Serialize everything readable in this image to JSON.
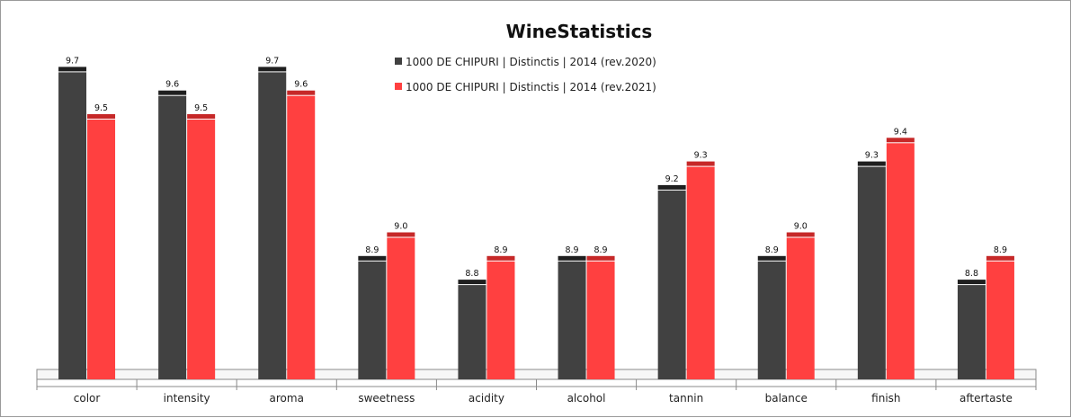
{
  "chart_data": {
    "type": "bar",
    "title": "WineStatistics",
    "xlabel": "",
    "ylabel": "",
    "ylim": [
      7.6,
      9.7
    ],
    "grid": false,
    "legend_position": "top-center",
    "categories": [
      "color",
      "intensity",
      "aroma",
      "sweetness",
      "acidity",
      "alcohol",
      "tannin",
      "balance",
      "finish",
      "aftertaste"
    ],
    "series": [
      {
        "name": "1000 DE CHIPURI | Distinctis | 2014 (rev.2020)",
        "color": "#414141",
        "cap_color": "#1f1f1f",
        "values": [
          9.7,
          9.6,
          9.7,
          8.9,
          8.8,
          8.9,
          9.2,
          8.9,
          9.3,
          8.8
        ],
        "labels": [
          "9.7",
          "9.6",
          "9.7",
          "8.9",
          "8.8",
          "8.9",
          "9.2",
          "8.9",
          "9.3",
          "8.8"
        ]
      },
      {
        "name": "1000 DE CHIPURI | Distinctis | 2014 (rev.2021)",
        "color": "#ff4040",
        "cap_color": "#c62828",
        "values": [
          9.5,
          9.5,
          9.6,
          9.0,
          8.9,
          8.9,
          9.3,
          9.0,
          9.4,
          8.9
        ],
        "labels": [
          "9.5",
          "9.5",
          "9.6",
          "9.0",
          "8.9",
          "8.9",
          "9.3",
          "9.0",
          "9.4",
          "8.9"
        ]
      }
    ]
  }
}
